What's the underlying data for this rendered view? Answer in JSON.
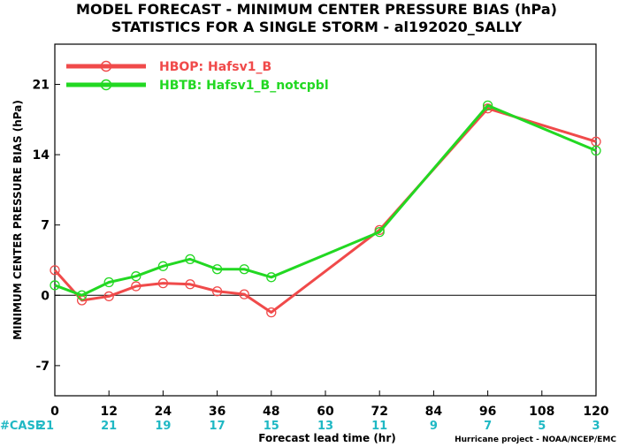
{
  "chart_data": {
    "type": "line",
    "title": "MODEL FORECAST - MINIMUM CENTER PRESSURE BIAS (hPa)",
    "subtitle": "STATISTICS FOR A SINGLE STORM - al192020_SALLY",
    "xlabel": "Forecast lead time (hr)",
    "ylabel": "MINIMUM CENTER PRESSURE BIAS (hPa)",
    "xlim": [
      0,
      120
    ],
    "ylim": [
      -10,
      25
    ],
    "x_ticks": [
      0,
      12,
      24,
      36,
      48,
      60,
      72,
      84,
      96,
      108,
      120
    ],
    "y_ticks": [
      -7,
      0,
      7,
      14,
      21
    ],
    "case_label": "#CASE",
    "case_counts": [
      21,
      21,
      19,
      17,
      15,
      13,
      11,
      9,
      7,
      5,
      3
    ],
    "zero_line": true,
    "grid": false,
    "legend_position": "top-left",
    "credit": "Hurricane project - NOAA/NCEP/EMC",
    "series": [
      {
        "name": "HBOP: Hafsv1_B",
        "color": "#f04a4a",
        "x": [
          0,
          6,
          12,
          18,
          24,
          30,
          36,
          42,
          48,
          72,
          96,
          120
        ],
        "y": [
          2.5,
          -0.5,
          -0.1,
          0.9,
          1.2,
          1.1,
          0.4,
          0.1,
          -1.7,
          6.5,
          18.6,
          15.3
        ]
      },
      {
        "name": "HBTB: Hafsv1_B_notcpbl",
        "color": "#22d822",
        "x": [
          0,
          6,
          12,
          18,
          24,
          30,
          36,
          42,
          48,
          72,
          96,
          120
        ],
        "y": [
          1.0,
          0.0,
          1.3,
          1.9,
          2.9,
          3.6,
          2.6,
          2.6,
          1.8,
          6.3,
          18.9,
          14.4
        ]
      }
    ]
  }
}
